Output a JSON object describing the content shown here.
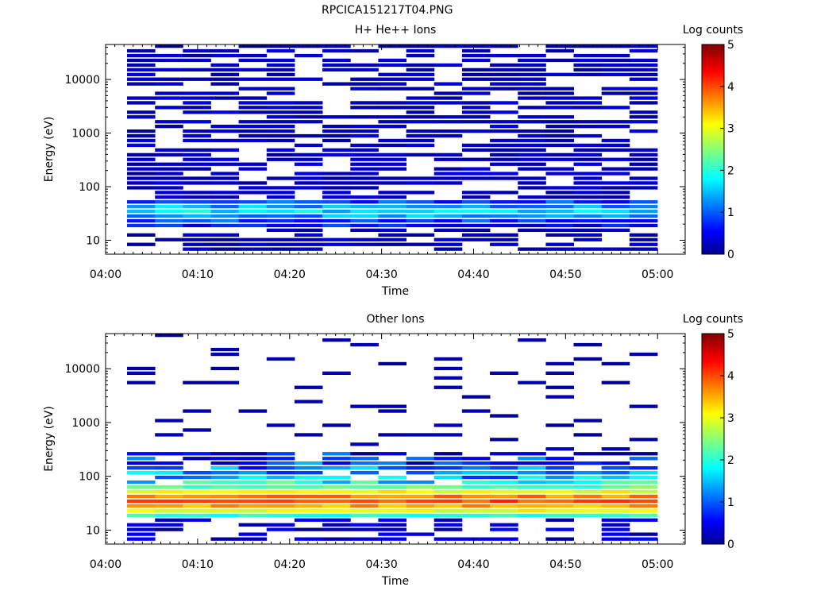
{
  "figure": {
    "title": "RPCICA151217T04.PNG"
  },
  "chart_data": [
    {
      "type": "heatmap",
      "title": "H+ He++ Ions",
      "xlabel": "Time",
      "ylabel": "Energy (eV)",
      "y_scale": "log",
      "ylim": [
        5.5,
        45000
      ],
      "x_ticks": [
        "04:00",
        "04:10",
        "04:20",
        "04:30",
        "04:40",
        "04:50",
        "05:00"
      ],
      "y_ticks": [
        "10",
        "100",
        "1000",
        "10000"
      ],
      "time_bins": [
        "04:03",
        "04:06",
        "04:09",
        "04:12",
        "04:15",
        "04:18",
        "04:21",
        "04:24",
        "04:27",
        "04:30",
        "04:33",
        "04:36",
        "04:39",
        "04:42",
        "04:45",
        "04:48",
        "04:51",
        "04:54",
        "04:57"
      ],
      "colorbar": {
        "label": "Log counts",
        "range": [
          0,
          5
        ],
        "ticks": [
          "0",
          "1",
          "2",
          "3",
          "4",
          "5"
        ]
      },
      "energy_profile": [
        {
          "energy_eV": 8,
          "log_counts": 0.2
        },
        {
          "energy_eV": 12,
          "log_counts": 0.3
        },
        {
          "energy_eV": 18,
          "log_counts": 0.6
        },
        {
          "energy_eV": 25,
          "log_counts": 1.1
        },
        {
          "energy_eV": 32,
          "log_counts": 1.8
        },
        {
          "energy_eV": 40,
          "log_counts": 1.5
        },
        {
          "energy_eV": 60,
          "log_counts": 0.5
        },
        {
          "energy_eV": 200,
          "log_counts": 0.3
        },
        {
          "energy_eV": 2000,
          "log_counts": 0.3
        },
        {
          "energy_eV": 20000,
          "log_counts": 0.3
        }
      ]
    },
    {
      "type": "heatmap",
      "title": "Other Ions",
      "xlabel": "Time",
      "ylabel": "Energy (eV)",
      "y_scale": "log",
      "ylim": [
        5.5,
        45000
      ],
      "x_ticks": [
        "04:00",
        "04:10",
        "04:20",
        "04:30",
        "04:40",
        "04:50",
        "05:00"
      ],
      "y_ticks": [
        "10",
        "100",
        "1000",
        "10000"
      ],
      "time_bins": [
        "04:03",
        "04:06",
        "04:09",
        "04:12",
        "04:15",
        "04:18",
        "04:21",
        "04:24",
        "04:27",
        "04:30",
        "04:33",
        "04:36",
        "04:39",
        "04:42",
        "04:45",
        "04:48",
        "04:51",
        "04:54",
        "04:57"
      ],
      "colorbar": {
        "label": "Log counts",
        "range": [
          0,
          5
        ],
        "ticks": [
          "0",
          "1",
          "2",
          "3",
          "4",
          "5"
        ]
      },
      "energy_profile": [
        {
          "energy_eV": 8,
          "log_counts": 0.1
        },
        {
          "energy_eV": 12,
          "log_counts": 0.5
        },
        {
          "energy_eV": 18,
          "log_counts": 2.0
        },
        {
          "energy_eV": 22,
          "log_counts": 3.0
        },
        {
          "energy_eV": 28,
          "log_counts": 3.6
        },
        {
          "energy_eV": 35,
          "log_counts": 4.1
        },
        {
          "energy_eV": 45,
          "log_counts": 3.5
        },
        {
          "energy_eV": 60,
          "log_counts": 2.4
        },
        {
          "energy_eV": 90,
          "log_counts": 1.5
        },
        {
          "energy_eV": 200,
          "log_counts": 0.7
        },
        {
          "energy_eV": 500,
          "log_counts": 0.3
        }
      ]
    }
  ]
}
